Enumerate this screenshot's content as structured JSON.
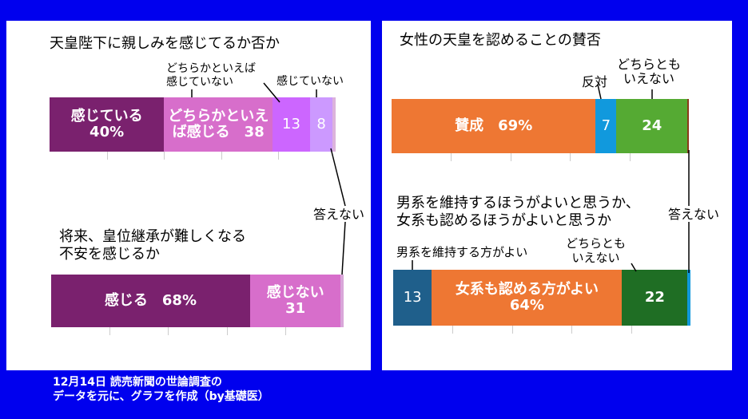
{
  "charts": [
    {
      "id": "emperor-affinity",
      "title": "天皇陛下に親しみを感じてるか否か",
      "segments": [
        {
          "label": "感じている\n40%",
          "value": 40,
          "color": "#7a216e",
          "text": "#ffffff"
        },
        {
          "label": "どちらかといえ\nば感じる　38",
          "value": 38,
          "color": "#d76ecb",
          "text": "#ffffff"
        },
        {
          "label": "13",
          "value": 13,
          "color": "#cc66ff",
          "text": "#ffffff"
        },
        {
          "label": "8",
          "value": 8,
          "color": "#cc99ff",
          "text": "#ffffff"
        },
        {
          "label": "",
          "value": 1,
          "color": "#dcb3dc",
          "text": "#ffffff"
        }
      ],
      "callouts": [
        "どちらかといえば\n感じていない",
        "感じていない"
      ]
    },
    {
      "id": "succession-anxiety",
      "title": "将来、皇位継承が難しくなる\n不安を感じるか",
      "segments": [
        {
          "label": "感じる　68%",
          "value": 68,
          "color": "#7a216e",
          "text": "#ffffff"
        },
        {
          "label": "感じない\n31",
          "value": 31,
          "color": "#d76ecb",
          "text": "#ffffff"
        },
        {
          "label": "",
          "value": 1,
          "color": "#d9a6d9",
          "text": "#ffffff"
        }
      ],
      "callouts": [
        "答えない"
      ]
    },
    {
      "id": "female-emperor",
      "title": "女性の天皇を認めることの賛否",
      "segments": [
        {
          "label": "賛成　69%",
          "value": 69,
          "color": "#ee7733",
          "text": "#ffffff"
        },
        {
          "label": "7",
          "value": 7,
          "color": "#1199dd",
          "text": "#ffffff"
        },
        {
          "label": "24",
          "value": 24,
          "color": "#55aa33",
          "text": "#ffffff"
        },
        {
          "label": "",
          "value": 0.5,
          "color": "#8b3a1a",
          "text": "#ffffff"
        }
      ],
      "callouts": [
        "反対",
        "どちらとも\nいえない"
      ]
    },
    {
      "id": "male-line",
      "title": "男系を維持するほうがよいと思うか、\n女系も認めるほうがよいと思うか",
      "segments": [
        {
          "label": "13",
          "value": 13,
          "color": "#1f5f8b",
          "text": "#ffffff"
        },
        {
          "label": "女系も認める方がよい\n64%",
          "value": 64,
          "color": "#ee7733",
          "text": "#ffffff"
        },
        {
          "label": "22",
          "value": 22,
          "color": "#1f6e24",
          "text": "#ffffff"
        },
        {
          "label": "",
          "value": 1,
          "color": "#1199dd",
          "text": "#ffffff"
        }
      ],
      "callouts": [
        "男系を維持する方がよい",
        "どちらとも\nいえない"
      ]
    }
  ],
  "shared_callouts": {
    "left_no_answer": "答えない",
    "right_no_answer": "答えない"
  },
  "footer": "12月14日 読売新聞の世論調査の\nデータを元に、グラフを作成（by基礎医）"
}
